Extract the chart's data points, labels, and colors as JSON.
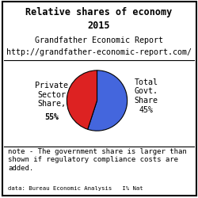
{
  "title_line1": "Relative shares of economy",
  "title_line2": "2015",
  "subtitle1": "Grandfather Economic Report",
  "subtitle2": "http://grandfather-economic-report.com/",
  "slices": [
    55,
    45
  ],
  "slice_colors": [
    "#4466dd",
    "#dd2222"
  ],
  "label_left_top": "Private\nSector\nShare,",
  "label_left_bold": "55%",
  "label_right": "Total\nGovt.\nShare\n45%",
  "note": "note - The government share is larger than\nshown if regulatory compliance costs are\nadded.",
  "datasource": "data: Bureau Economic Analysis   I% Nat",
  "background_color": "#ffffff",
  "border_color": "#000000",
  "title_fontsize": 8.5,
  "subtitle_fontsize": 7.2,
  "label_fontsize": 7.2,
  "note_fontsize": 6.5,
  "startangle": 90
}
